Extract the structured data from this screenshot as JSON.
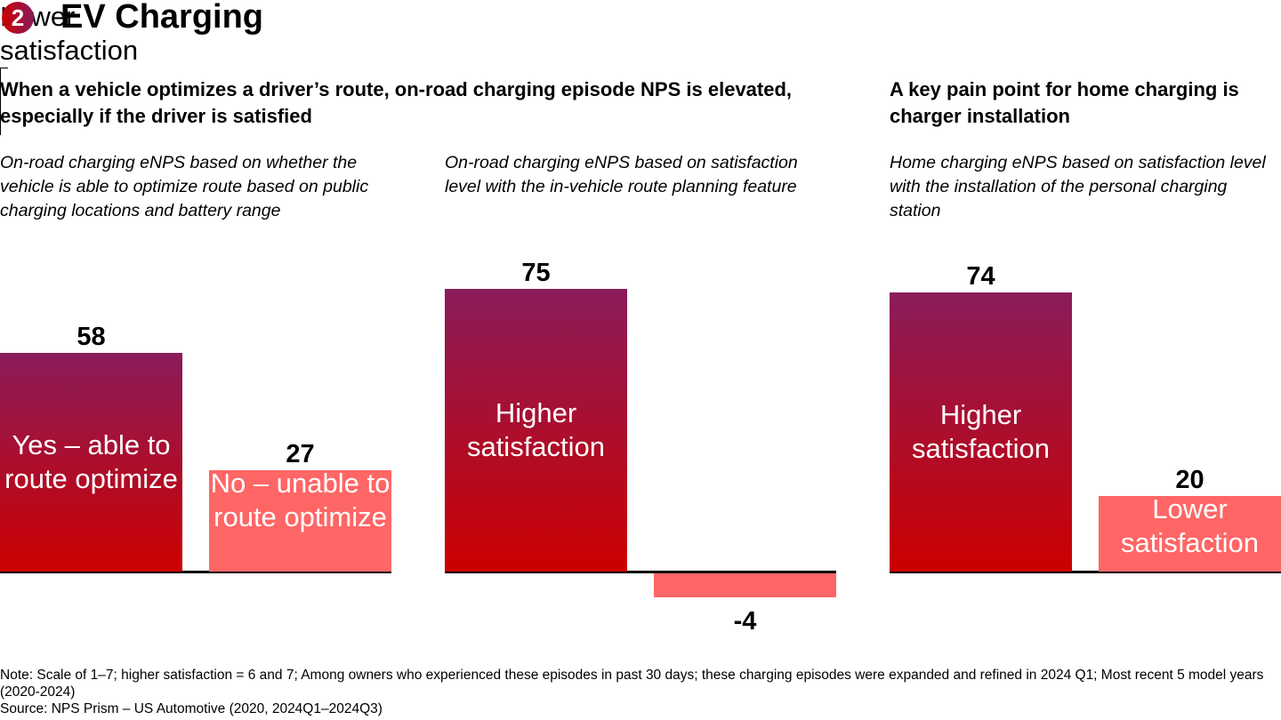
{
  "header": {
    "badge": "2",
    "title": "EV Charging"
  },
  "sections": [
    {
      "heading": "When a vehicle optimizes a driver’s route, on-road charging episode NPS is elevated, especially if the driver is satisfied"
    },
    {
      "heading": "A key pain point for home charging is charger installation"
    }
  ],
  "colors": {
    "dark_top": "#8a1c5a",
    "dark_bottom": "#cc0000",
    "light": "#ff6666"
  },
  "chart_data": [
    {
      "type": "bar",
      "title": "On-road charging eNPS based on whether the vehicle is able to optimize route based on public charging locations and battery range",
      "categories": [
        "Yes – able to route optimize",
        "No – unable to route optimize"
      ],
      "values": [
        58,
        27
      ]
    },
    {
      "type": "bar",
      "title": "On-road charging eNPS based on satisfaction level with the in-vehicle route planning feature",
      "categories": [
        "Higher satisfaction",
        "Lower satisfaction"
      ],
      "values": [
        75,
        -4
      ]
    },
    {
      "type": "bar",
      "title": "Home charging eNPS based on satisfaction level with the installation of the personal charging station",
      "categories": [
        "Higher satisfaction",
        "Lower satisfaction"
      ],
      "values": [
        74,
        20
      ]
    }
  ],
  "footer": {
    "note": "Note: Scale of 1–7; higher satisfaction = 6 and 7; Among owners who experienced these episodes in past 30 days; these charging episodes were expanded and refined in 2024 Q1; Most recent 5 model years (2020-2024)",
    "source": "Source: NPS Prism – US Automotive (2020, 2024Q1–2024Q3)"
  }
}
